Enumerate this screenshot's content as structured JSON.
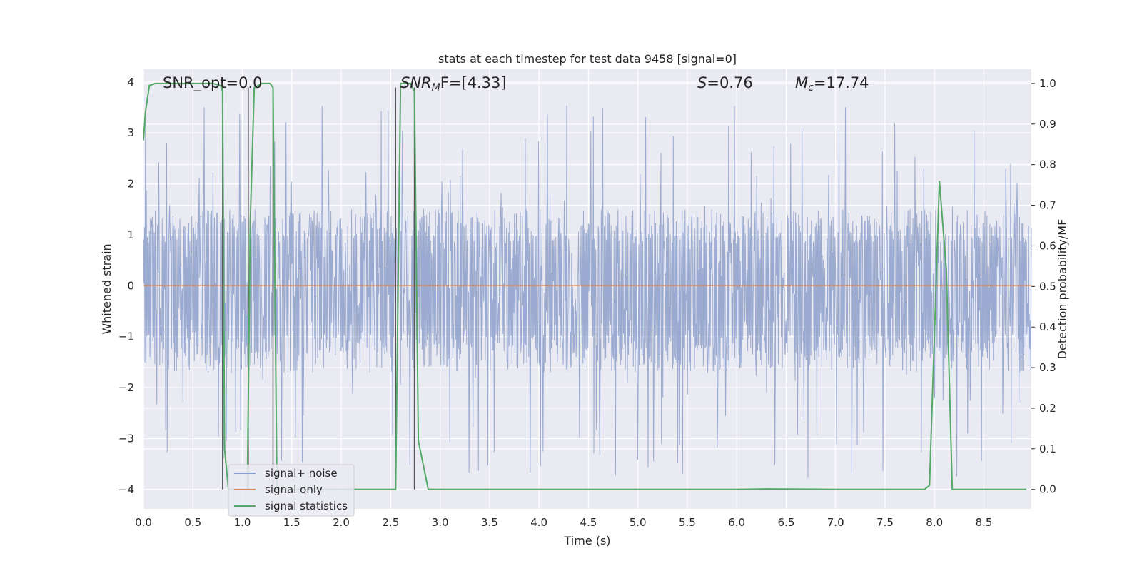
{
  "chart_data": {
    "type": "line",
    "title": "stats at each timestep for test data 9458 [signal=0]",
    "xlabel": "Time (s)",
    "ylabel": "Whitened strain",
    "y2label": "Detection probability/MF",
    "xlim": [
      0.0,
      8.98
    ],
    "ylim": [
      -4.38,
      4.25
    ],
    "y2lim": [
      -0.048,
      1.035
    ],
    "xticks": [
      0.0,
      0.5,
      1.0,
      1.5,
      2.0,
      2.5,
      3.0,
      3.5,
      4.0,
      4.5,
      5.0,
      5.5,
      6.0,
      6.5,
      7.0,
      7.5,
      8.0,
      8.5
    ],
    "yticks": [
      -4,
      -3,
      -2,
      -1,
      0,
      1,
      2,
      3,
      4
    ],
    "y2ticks": [
      0.0,
      0.1,
      0.2,
      0.3,
      0.4,
      0.5,
      0.6,
      0.7,
      0.8,
      0.9,
      1.0
    ],
    "grid": true,
    "legend_position": "lower-left",
    "annotations": {
      "snr_opt": "SNR_opt=0.0",
      "snr_mf_base": "SNR",
      "snr_mf_sub": "M",
      "snr_mf_rest": "F=[4.33]",
      "s_base": "S",
      "s_rest": "=0.76",
      "mc_base": "M",
      "mc_sub": "c",
      "mc_rest": "=17.74"
    },
    "series": [
      {
        "name": "signal+ noise",
        "color": "#8c9fca",
        "style": "noise",
        "x_range": [
          0.0,
          8.98
        ],
        "typical_range": [
          -1.7,
          1.5
        ],
        "extreme_range": [
          -3.8,
          3.6
        ]
      },
      {
        "name": "signal only",
        "color": "#dd8452",
        "style": "constant",
        "value": 0.0
      },
      {
        "name": "signal statistics",
        "color": "#55a868",
        "axis": "right",
        "x": [
          0.0,
          0.02,
          0.06,
          0.12,
          0.2,
          0.4,
          0.6,
          0.7,
          0.78,
          0.8,
          0.82,
          0.86,
          1.0,
          1.05,
          1.08,
          1.12,
          1.2,
          1.28,
          1.31,
          1.35,
          1.4,
          1.6,
          2.0,
          2.3,
          2.55,
          2.6,
          2.62,
          2.7,
          2.74,
          2.78,
          2.88,
          3.0,
          4.0,
          5.0,
          6.0,
          6.3,
          7.0,
          7.9,
          7.95,
          8.0,
          8.05,
          8.12,
          8.18,
          8.25,
          8.5,
          8.93
        ],
        "values": [
          0.86,
          0.93,
          0.995,
          1.0,
          1.0,
          1.0,
          1.0,
          1.0,
          0.995,
          0.98,
          0.1,
          0.0,
          0.0,
          0.0,
          0.66,
          0.99,
          1.0,
          1.0,
          0.99,
          0.0,
          0.0,
          0.0,
          0.0,
          0.0,
          0.0,
          1.0,
          1.0,
          1.0,
          0.98,
          0.12,
          0.0,
          0.0,
          0.0,
          0.0,
          0.0,
          0.001,
          0.0,
          0.0,
          0.01,
          0.38,
          0.76,
          0.54,
          0.0,
          0.0,
          0.0,
          0.0
        ]
      }
    ],
    "vertical_markers": {
      "color": "#555555",
      "segments": [
        {
          "x": 0.8,
          "y2_from": 0.0,
          "y2_to": 0.99
        },
        {
          "x": 1.06,
          "y2_from": 0.0,
          "y2_to": 0.99
        },
        {
          "x": 1.31,
          "y2_from": 0.0,
          "y2_to": 0.99
        },
        {
          "x": 2.55,
          "y2_from": 0.0,
          "y2_to": 0.99
        },
        {
          "x": 2.74,
          "y2_from": 0.0,
          "y2_to": 0.99
        }
      ]
    }
  }
}
